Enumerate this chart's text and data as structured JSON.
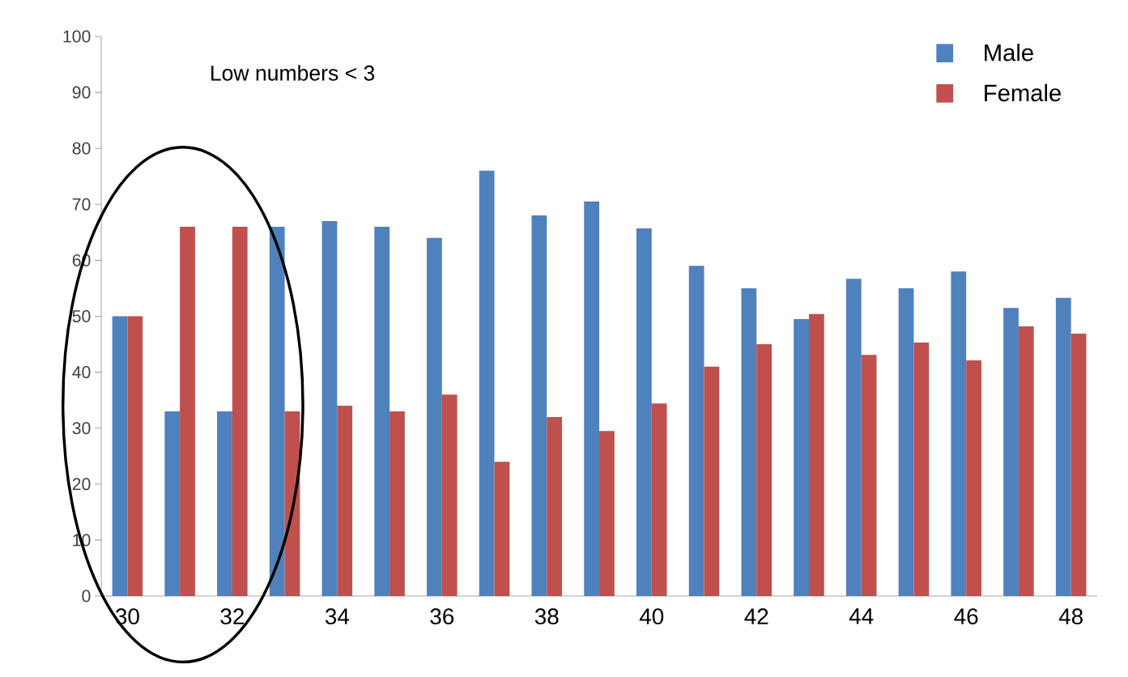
{
  "chart_data": {
    "type": "bar",
    "categories": [
      "30",
      null,
      "32",
      null,
      "34",
      null,
      "36",
      null,
      "38",
      null,
      "40",
      null,
      "42",
      null,
      "44",
      null,
      "46",
      null,
      "48"
    ],
    "series": [
      {
        "name": "Male",
        "color": "#4f81bd",
        "values": [
          50,
          33,
          33,
          66,
          67,
          66,
          64,
          76,
          68,
          70.5,
          65.7,
          59,
          55,
          49.5,
          56.7,
          55,
          58,
          51.5,
          53.3
        ]
      },
      {
        "name": "Female",
        "color": "#c0504d",
        "values": [
          50,
          66,
          66,
          33,
          34,
          33,
          36,
          24,
          32,
          29.5,
          34.4,
          41,
          45,
          50.4,
          43.1,
          45.3,
          42.1,
          48.2,
          46.9
        ]
      }
    ],
    "ylim": [
      0,
      100
    ],
    "yticks": [
      0,
      10,
      20,
      30,
      40,
      50,
      60,
      70,
      80,
      90,
      100
    ],
    "grid": false,
    "legend": "top right",
    "annotations": [
      "Low numbers < 3"
    ]
  }
}
